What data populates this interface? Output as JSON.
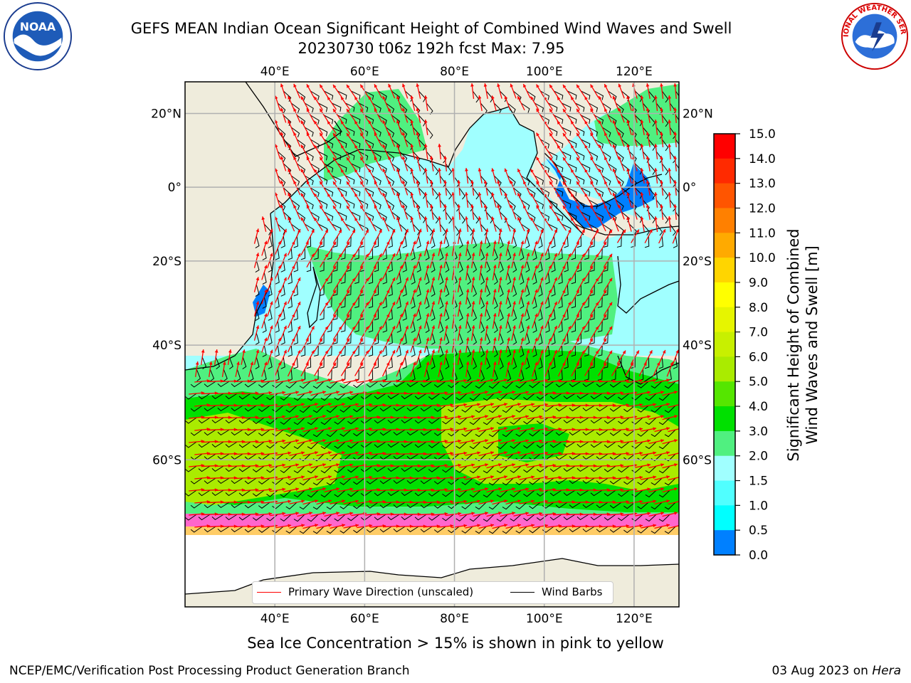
{
  "header": {
    "title_line1": "GEFS MEAN Indian Ocean Significant Height of Combined Wind Waves and Swell",
    "title_line2": "20230730 t06z 192h fcst   Max: 7.95"
  },
  "logos": {
    "left": "NOAA",
    "right_text": "NATIONAL WEATHER SERVICE"
  },
  "map": {
    "lon_labels": [
      "40°E",
      "60°E",
      "80°E",
      "100°E",
      "120°E"
    ],
    "lat_labels": [
      "20°N",
      "0°",
      "20°S",
      "40°S",
      "60°S"
    ],
    "lon_values": [
      40,
      60,
      80,
      100,
      120
    ],
    "lat_values": [
      20,
      0,
      -20,
      -40,
      -60
    ],
    "extent": {
      "lon_min": 20,
      "lon_max": 130,
      "lat_min": -75,
      "lat_max": 28
    },
    "land_color": "#efecdc",
    "sea_ice_color": "#ff66cc",
    "wave_arrow_color": "#ff0000",
    "barb_color": "#000000"
  },
  "legend": {
    "primary_wave": "Primary Wave Direction (unscaled)",
    "wind_barbs": "Wind Barbs"
  },
  "colorbar": {
    "title_line1": "Significant Height of Combined",
    "title_line2": "Wind Waves and Swell [m]",
    "ticks": [
      "15.0",
      "14.0",
      "13.0",
      "12.0",
      "11.0",
      "10.0",
      "9.0",
      "8.0",
      "7.0",
      "6.0",
      "5.0",
      "4.0",
      "3.0",
      "2.0",
      "1.5",
      "1.0",
      "0.5",
      "0.0"
    ],
    "colors": [
      "#ff0000",
      "#ff2a00",
      "#ff5500",
      "#ff8000",
      "#ffaa00",
      "#ffd500",
      "#ffff00",
      "#e6f500",
      "#c8f000",
      "#aaeb00",
      "#55e600",
      "#00e000",
      "#50f080",
      "#a0ffff",
      "#50ffff",
      "#00ffff",
      "#0080ff",
      "#0000ff"
    ]
  },
  "caption": "Sea Ice Concentration > 15% is shown in pink to yellow",
  "footer": {
    "credit": "NCEP/EMC/Verification Post Processing Product Generation Branch",
    "date_prefix": "03 Aug 2023 on ",
    "host": "Hera"
  }
}
